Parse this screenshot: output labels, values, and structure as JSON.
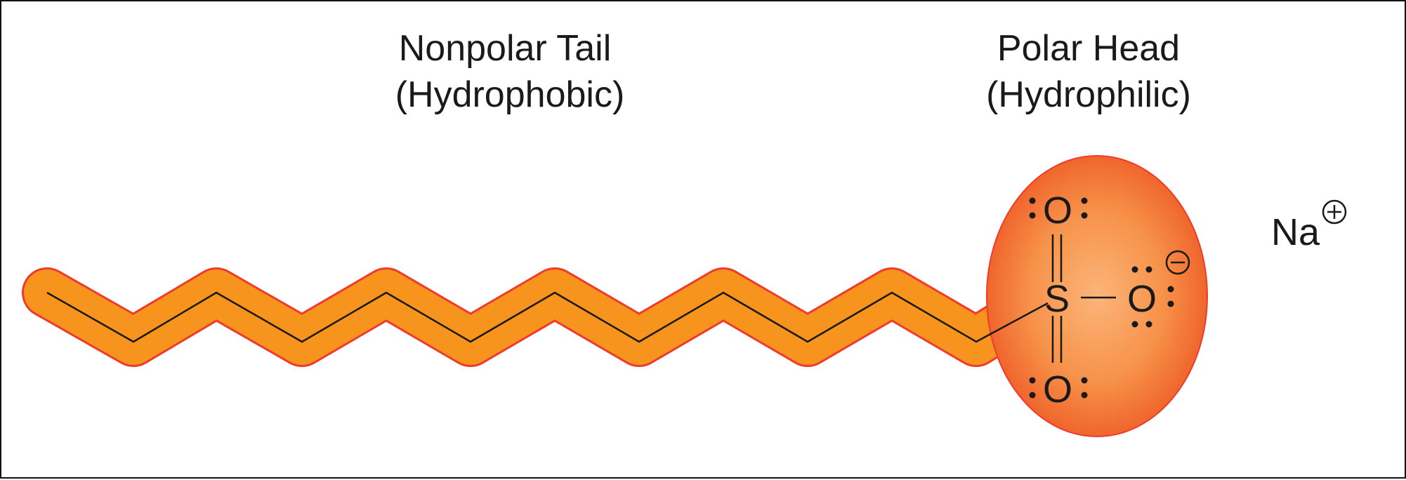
{
  "labels": {
    "tail_title": "Nonpolar Tail",
    "tail_subtitle": "(Hydrophobic)",
    "head_title": "Polar Head",
    "head_subtitle": "(Hydrophilic)"
  },
  "atoms": {
    "sulfur": "S",
    "oxygen_top": "O",
    "oxygen_bottom": "O",
    "oxygen_right": "O",
    "counter_ion": "Na"
  },
  "charges": {
    "oxygen_right": "−",
    "counter_ion": "+"
  },
  "colors": {
    "tail_fill": "#f7941d",
    "tail_outline": "#ee3b2b",
    "head_center": "#fbb57a",
    "head_edge": "#ee5a24",
    "bond": "#1a1a1a"
  }
}
